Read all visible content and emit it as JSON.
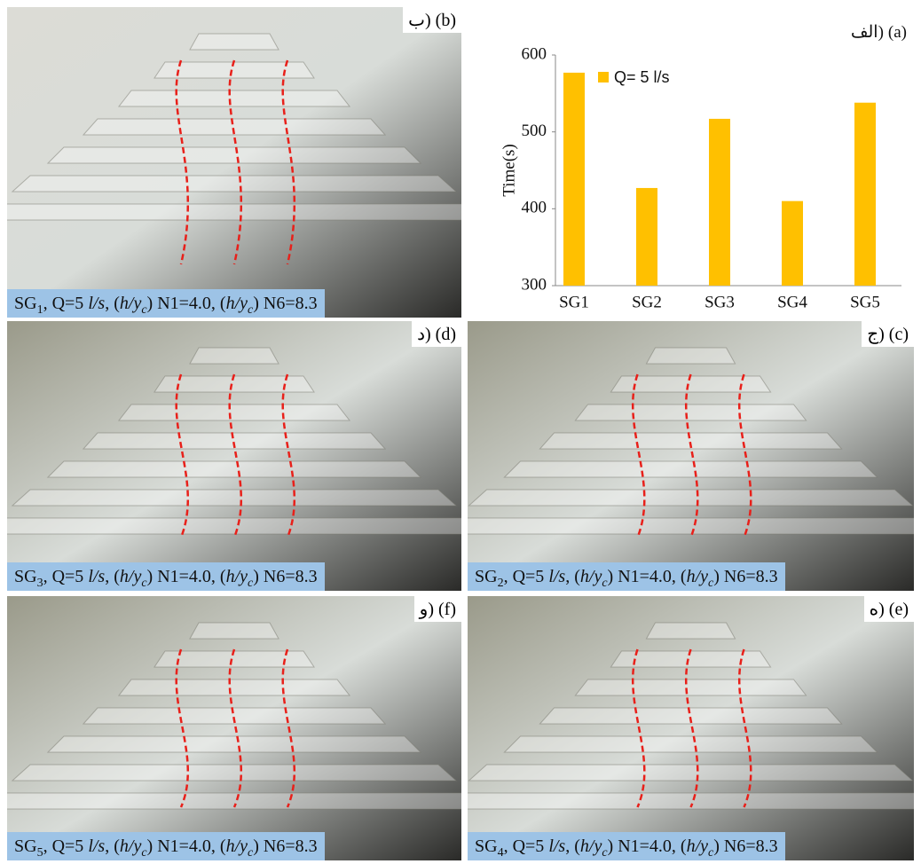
{
  "chart_data": {
    "type": "bar",
    "panel_label": "(a)",
    "panel_label_alt": "الف)",
    "y_label": "Time(s)",
    "categories": [
      "SG1",
      "SG2",
      "SG3",
      "SG4",
      "SG5"
    ],
    "series": [
      {
        "name": "Q= 5 l/s",
        "color": "#ffc000",
        "values": [
          577,
          427,
          517,
          410,
          538
        ]
      }
    ],
    "ylim": [
      300,
      600
    ],
    "yticks": [
      300,
      400,
      500,
      600
    ],
    "legend": "upper left"
  },
  "panels": [
    {
      "label": "(b)",
      "label_alt": "ب)",
      "caption": [
        "SG",
        "1",
        ", Q=5 ",
        "l/s",
        ", (",
        "h/y",
        "c",
        ") N1=4.0, (",
        "h/y",
        "c",
        ") N6=8.3"
      ]
    },
    {
      "label": "(d)",
      "label_alt": "د)",
      "caption": [
        "SG",
        "3",
        ", Q=5 ",
        "l/s",
        ", (",
        "h/y",
        "c",
        ") N1=4.0, (",
        "h/y",
        "c",
        ") N6=8.3"
      ]
    },
    {
      "label": "(c)",
      "label_alt": "ج)",
      "caption": [
        "SG",
        "2",
        ", Q=5 ",
        "l/s",
        ", (",
        "h/y",
        "c",
        ") N1=4.0, (",
        "h/y",
        "c",
        ") N6=8.3"
      ]
    },
    {
      "label": "(f)",
      "label_alt": "و)",
      "caption": [
        "SG",
        "5",
        ", Q=5 ",
        "l/s",
        ", (",
        "h/y",
        "c",
        ") N1=4.0, (",
        "h/y",
        "c",
        ") N6=8.3"
      ]
    },
    {
      "label": "(e)",
      "label_alt": "ه)",
      "caption": [
        "SG",
        "4",
        ", Q=5 ",
        "l/s",
        ", (",
        "h/y",
        "c",
        ") N1=4.0, (",
        "h/y",
        "c",
        ") N6=8.3"
      ]
    }
  ]
}
